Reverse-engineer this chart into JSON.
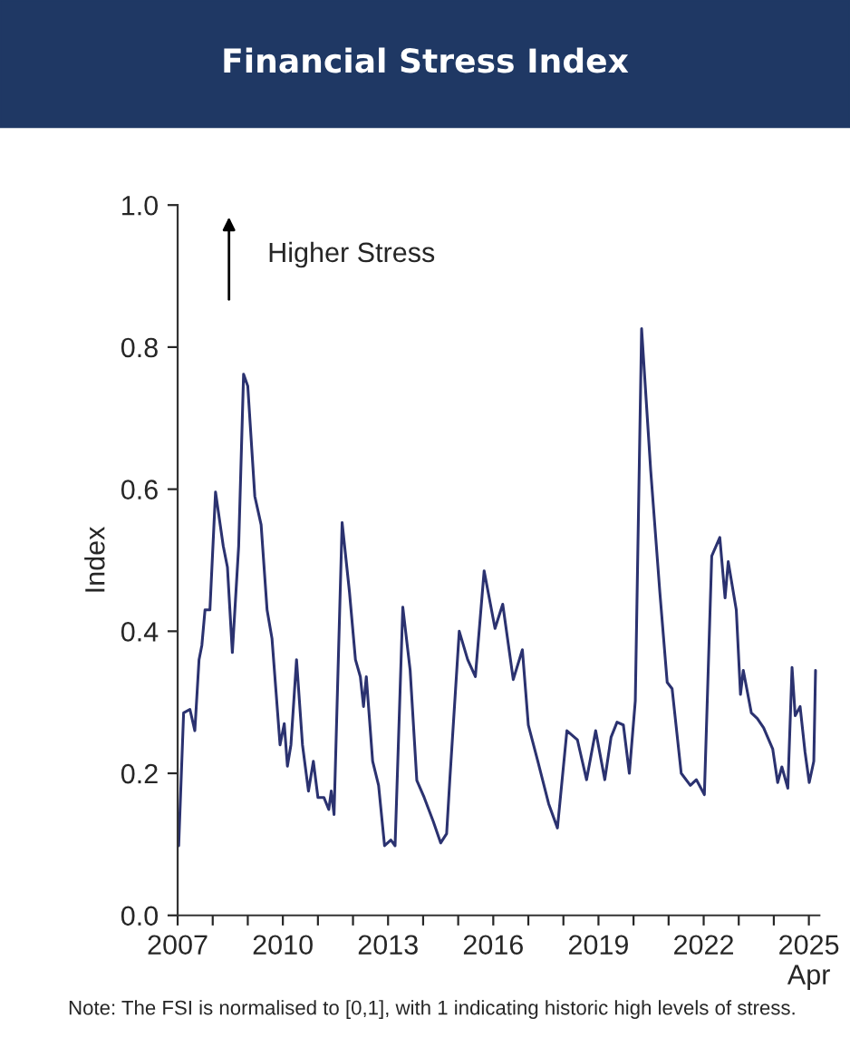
{
  "chart_data": {
    "type": "line",
    "title": "Financial Stress Index",
    "ylabel": "Index",
    "x": [
      2007.03,
      2007.17,
      2007.35,
      2007.49,
      2007.61,
      2007.69,
      2007.78,
      2007.92,
      2008.08,
      2008.3,
      2008.42,
      2008.56,
      2008.74,
      2008.88,
      2009.0,
      2009.2,
      2009.38,
      2009.55,
      2009.69,
      2009.92,
      2010.04,
      2010.13,
      2010.23,
      2010.39,
      2010.56,
      2010.73,
      2010.87,
      2011.0,
      2011.17,
      2011.31,
      2011.38,
      2011.46,
      2011.69,
      2011.9,
      2012.07,
      2012.21,
      2012.3,
      2012.38,
      2012.56,
      2012.73,
      2012.9,
      2013.08,
      2013.2,
      2013.42,
      2013.63,
      2013.82,
      2014.03,
      2014.29,
      2014.5,
      2014.67,
      2014.76,
      2015.03,
      2015.27,
      2015.49,
      2015.74,
      2016.05,
      2016.27,
      2016.57,
      2016.83,
      2017.0,
      2017.27,
      2017.58,
      2017.83,
      2018.1,
      2018.4,
      2018.66,
      2018.92,
      2019.18,
      2019.36,
      2019.53,
      2019.71,
      2019.88,
      2020.05,
      2020.23,
      2020.49,
      2020.75,
      2020.96,
      2021.1,
      2021.36,
      2021.62,
      2021.79,
      2022.02,
      2022.23,
      2022.46,
      2022.61,
      2022.7,
      2022.93,
      2023.05,
      2023.13,
      2023.36,
      2023.53,
      2023.71,
      2023.97,
      2024.11,
      2024.23,
      2024.4,
      2024.52,
      2024.61,
      2024.75,
      2024.89,
      2025.01,
      2025.14,
      2025.19
    ],
    "series": [
      {
        "color": "#2b3270",
        "values": [
          0.098,
          0.285,
          0.29,
          0.26,
          0.36,
          0.38,
          0.43,
          0.43,
          0.596,
          0.52,
          0.49,
          0.37,
          0.52,
          0.762,
          0.745,
          0.59,
          0.55,
          0.43,
          0.39,
          0.24,
          0.27,
          0.21,
          0.24,
          0.36,
          0.24,
          0.175,
          0.217,
          0.166,
          0.166,
          0.149,
          0.175,
          0.142,
          0.553,
          0.455,
          0.36,
          0.336,
          0.294,
          0.336,
          0.217,
          0.183,
          0.098,
          0.106,
          0.098,
          0.434,
          0.345,
          0.19,
          0.166,
          0.132,
          0.102,
          0.115,
          0.19,
          0.4,
          0.36,
          0.336,
          0.485,
          0.404,
          0.438,
          0.332,
          0.374,
          0.268,
          0.217,
          0.157,
          0.123,
          0.26,
          0.247,
          0.191,
          0.26,
          0.191,
          0.251,
          0.272,
          0.268,
          0.2,
          0.302,
          0.826,
          0.626,
          0.455,
          0.328,
          0.319,
          0.2,
          0.183,
          0.191,
          0.17,
          0.506,
          0.532,
          0.447,
          0.498,
          0.43,
          0.311,
          0.345,
          0.285,
          0.277,
          0.264,
          0.234,
          0.187,
          0.209,
          0.179,
          0.349,
          0.281,
          0.294,
          0.23,
          0.187,
          0.217,
          0.345
        ]
      }
    ],
    "xlim": [
      2007,
      2025.3
    ],
    "xticks": [
      {
        "value": 2007,
        "label": "2007"
      },
      {
        "value": 2008,
        "label": null
      },
      {
        "value": 2009,
        "label": null
      },
      {
        "value": 2010,
        "label": "2010"
      },
      {
        "value": 2011,
        "label": null
      },
      {
        "value": 2012,
        "label": null
      },
      {
        "value": 2013,
        "label": "2013"
      },
      {
        "value": 2014,
        "label": null
      },
      {
        "value": 2015,
        "label": null
      },
      {
        "value": 2016,
        "label": "2016"
      },
      {
        "value": 2017,
        "label": null
      },
      {
        "value": 2018,
        "label": null
      },
      {
        "value": 2019,
        "label": "2019"
      },
      {
        "value": 2020,
        "label": null
      },
      {
        "value": 2021,
        "label": null
      },
      {
        "value": 2022,
        "label": "2022"
      },
      {
        "value": 2023,
        "label": null
      },
      {
        "value": 2024,
        "label": null
      },
      {
        "value": 2025,
        "label": "2025\nApr"
      }
    ],
    "ylim": [
      0,
      1
    ],
    "yticks": [
      {
        "value": 0,
        "label": "0.0"
      },
      {
        "value": 0.2,
        "label": "0.2"
      },
      {
        "value": 0.4,
        "label": "0.4"
      },
      {
        "value": 0.6,
        "label": "0.6"
      },
      {
        "value": 0.8,
        "label": "0.8"
      },
      {
        "value": 1,
        "label": "1.0"
      }
    ],
    "grid": false,
    "legend": false,
    "annotations": [
      "Higher Stress",
      "Note: The FSI is normalised to [0,1], with 1 indicating historic high levels of stress."
    ]
  }
}
